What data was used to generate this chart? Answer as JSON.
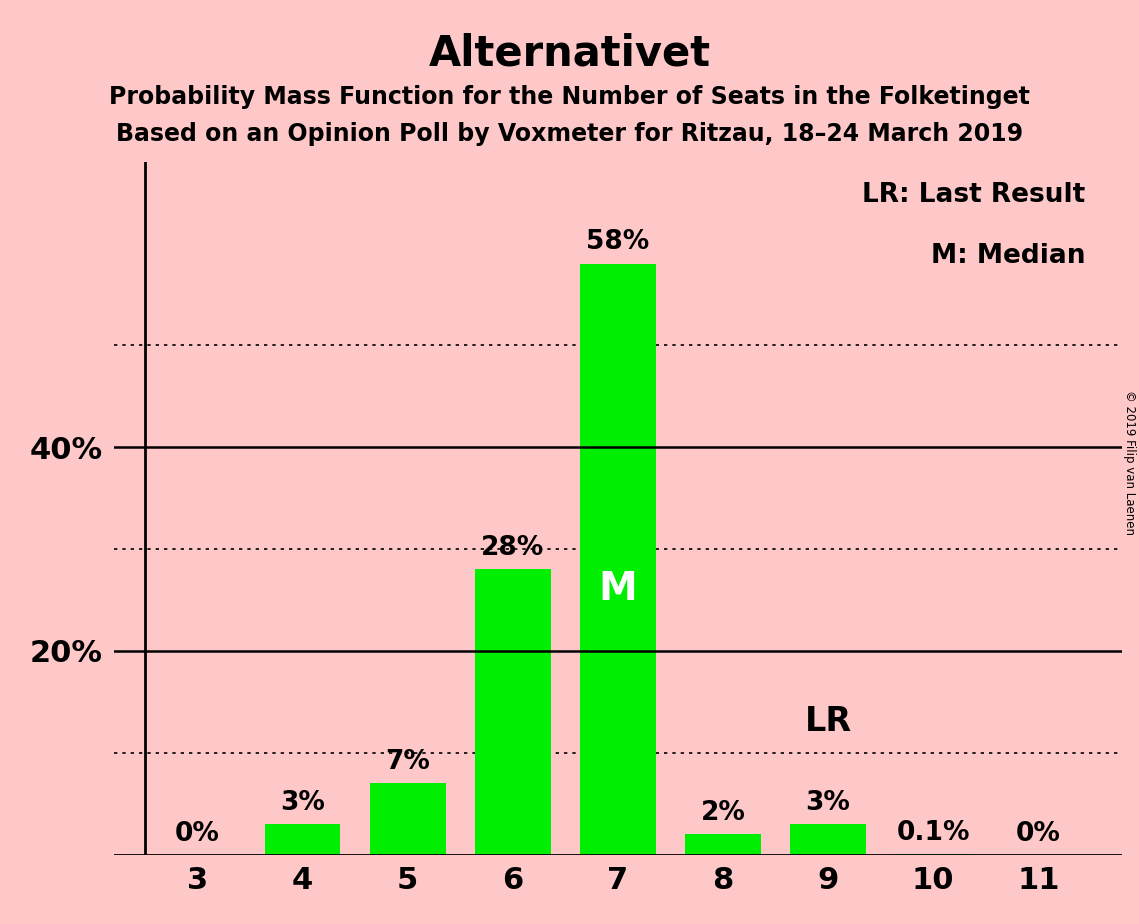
{
  "title": "Alternativet",
  "subtitle1": "Probability Mass Function for the Number of Seats in the Folketinget",
  "subtitle2": "Based on an Opinion Poll by Voxmeter for Ritzau, 18–24 March 2019",
  "copyright": "© 2019 Filip van Laenen",
  "categories": [
    3,
    4,
    5,
    6,
    7,
    8,
    9,
    10,
    11
  ],
  "values": [
    0.0,
    3.0,
    7.0,
    28.0,
    58.0,
    2.0,
    3.0,
    0.1,
    0.0
  ],
  "bar_labels": [
    "0%",
    "3%",
    "7%",
    "28%",
    "58%",
    "2%",
    "3%",
    "0.1%",
    "0%"
  ],
  "bar_color": "#00ee00",
  "background_color": "#ffc8c8",
  "median_seat": 7,
  "median_label": "M",
  "lr_seat": 9,
  "lr_label": "LR",
  "legend_lr": "LR: Last Result",
  "legend_m": "M: Median",
  "ylim": [
    0,
    68
  ],
  "solid_ytick_values": [
    0,
    20,
    40
  ],
  "dotted_ytick_values": [
    10,
    30,
    50
  ],
  "ytick_labels_map": {
    "0": "",
    "20": "20%",
    "40": "40%"
  },
  "title_fontsize": 30,
  "subtitle_fontsize": 17,
  "bar_label_fontsize": 19,
  "axis_fontsize": 22,
  "legend_fontsize": 19,
  "median_fontsize": 28,
  "lr_fontsize": 24
}
